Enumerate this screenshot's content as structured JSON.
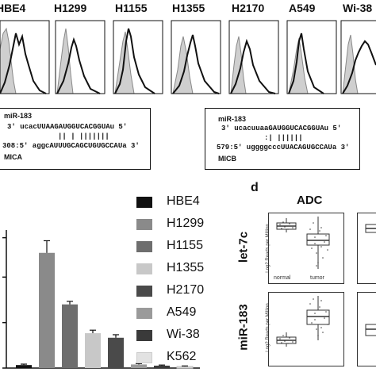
{
  "top_cells": [
    "HBE4",
    "H1299",
    "H1155",
    "H1355",
    "H2170",
    "A549",
    "Wi-38"
  ],
  "box_left": {
    "title": "miR-183",
    "line1": "3' ucacUUAAGAUGGUCACGGUAu 5'",
    "line2": "|| | |||||||",
    "line3": "308:5' aggcAUUUGCAGCUGUGCCAUa 3'",
    "gene": "MICA"
  },
  "box_right": {
    "title": "miR-183",
    "line1": "3' ucacuuaaGAUGGUCACGGUAu 5'",
    "line2": ":| ||||||",
    "line3": "579:5' uggggcccUUACAGUGCCAUa 3'",
    "gene": "MICB"
  },
  "legend": [
    {
      "label": "HBE4",
      "color": "#111111"
    },
    {
      "label": "H1299",
      "color": "#8a8a8a"
    },
    {
      "label": "H1155",
      "color": "#6e6e6e"
    },
    {
      "label": "H1355",
      "color": "#c8c8c8"
    },
    {
      "label": "H2170",
      "color": "#4a4a4a"
    },
    {
      "label": "A549",
      "color": "#9a9a9a"
    },
    {
      "label": "Wi-38",
      "color": "#3a3a3a"
    },
    {
      "label": "K562",
      "color": "#e2e2e2"
    }
  ],
  "chart_data": {
    "type": "bar",
    "categories": [
      "HBE4",
      "H1299",
      "H1155",
      "H1355",
      "H2170",
      "A549",
      "Wi-38",
      "K562"
    ],
    "values": [
      1,
      38,
      21,
      11.5,
      10,
      1.2,
      0.8,
      0.5
    ],
    "errors": [
      0.3,
      4,
      1,
      1,
      1,
      0.3,
      0.2,
      0.2
    ],
    "ylim": [
      0,
      45
    ],
    "colors": [
      "#111111",
      "#8a8a8a",
      "#6e6e6e",
      "#c8c8c8",
      "#4a4a4a",
      "#9a9a9a",
      "#3a3a3a",
      "#e2e2e2"
    ]
  },
  "panel_d": {
    "letter": "d",
    "title": "ADC",
    "rows": [
      "let-7c",
      "miR-183"
    ],
    "ylabel": "Log2 Reads per Million",
    "groups": [
      "normal",
      "tumor"
    ]
  }
}
